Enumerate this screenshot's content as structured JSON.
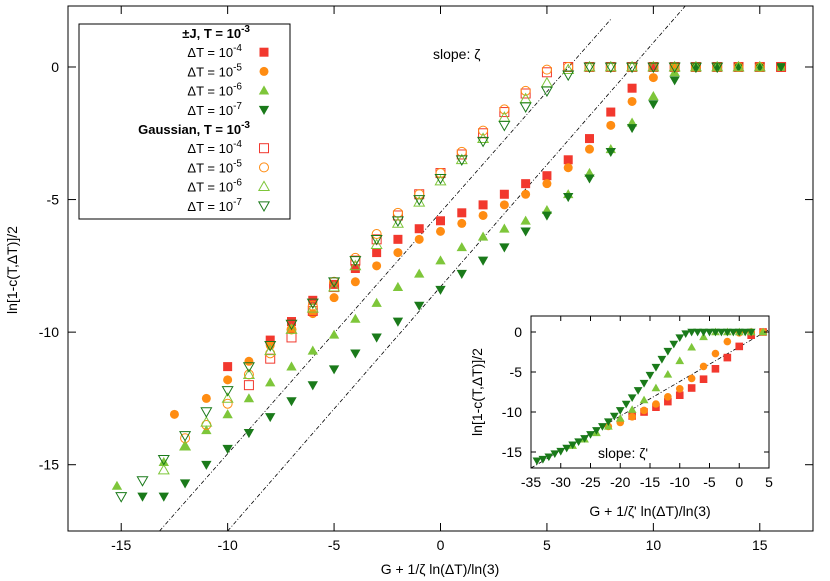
{
  "chart_data": {
    "type": "scatter",
    "title": "",
    "xlabel": "G + 1/ζ ln(ΔT)/ln(3)",
    "ylabel": "ln[1-c(T,ΔT)]/2",
    "xlim": [
      -17.5,
      17.5
    ],
    "ylim": [
      -17.5,
      2.3
    ],
    "xticks": [
      -15,
      -10,
      -5,
      0,
      5,
      10,
      15
    ],
    "yticks": [
      0,
      -5,
      -10,
      -15
    ],
    "annotation": "slope: ζ",
    "reference_lines": [
      {
        "name": "slope-line-left",
        "points": [
          [
            -13.2,
            -17.5
          ],
          [
            8.0,
            1.8
          ]
        ]
      },
      {
        "name": "slope-line-right",
        "points": [
          [
            -10.0,
            -17.5
          ],
          [
            11.5,
            2.3
          ]
        ]
      }
    ],
    "legend": {
      "groups": [
        {
          "title": "±J, T = 10",
          "title_exp": "-3",
          "entries": [
            {
              "label": "ΔT = 10",
              "exp": "-4",
              "series": 0
            },
            {
              "label": "ΔT = 10",
              "exp": "-5",
              "series": 1
            },
            {
              "label": "ΔT = 10",
              "exp": "-6",
              "series": 2
            },
            {
              "label": "ΔT = 10",
              "exp": "-7",
              "series": 3
            }
          ]
        },
        {
          "title": "Gaussian, T = 10",
          "title_exp": "-3",
          "entries": [
            {
              "label": "ΔT = 10",
              "exp": "-4",
              "series": 4
            },
            {
              "label": "ΔT = 10",
              "exp": "-5",
              "series": 5
            },
            {
              "label": "ΔT = 10",
              "exp": "-6",
              "series": 6
            },
            {
              "label": "ΔT = 10",
              "exp": "-7",
              "series": 7
            }
          ]
        }
      ]
    },
    "series": [
      {
        "name": "±J ΔT=10^-4",
        "marker": "square",
        "filled": true,
        "color": "#f2382e",
        "x": [
          -10.0,
          -8.0,
          -7.0,
          -6.0,
          -5.0,
          -4.0,
          -3.0,
          -2.0,
          -1.0,
          0.0,
          1.0,
          2.0,
          3.0,
          4.0,
          5.0,
          6.0,
          7.0,
          8.0,
          9.0,
          10.0,
          11.0,
          12.0,
          13.0,
          14.0,
          15.0,
          16.0
        ],
        "y": [
          -11.3,
          -10.3,
          -9.6,
          -8.8,
          -8.2,
          -7.6,
          -7.0,
          -6.5,
          -6.1,
          -5.8,
          -5.5,
          -5.2,
          -4.8,
          -4.4,
          -4.1,
          -3.5,
          -2.7,
          -1.7,
          -0.8,
          0.0,
          0.0,
          0.0,
          0.0,
          0.0,
          0.0,
          0.0
        ]
      },
      {
        "name": "±J ΔT=10^-5",
        "marker": "circle",
        "filled": true,
        "color": "#ff8c12",
        "x": [
          -12.5,
          -11.0,
          -10.0,
          -9.0,
          -8.0,
          -7.0,
          -6.0,
          -5.0,
          -4.0,
          -3.0,
          -2.0,
          -1.0,
          0.0,
          1.0,
          2.0,
          3.0,
          4.0,
          5.0,
          6.0,
          7.0,
          8.0,
          9.0,
          10.0,
          11.0,
          12.0,
          13.0,
          14.0,
          15.0,
          16.0
        ],
        "y": [
          -13.1,
          -12.5,
          -11.8,
          -11.1,
          -10.5,
          -9.9,
          -9.3,
          -8.7,
          -8.1,
          -7.5,
          -7.0,
          -6.5,
          -6.2,
          -5.9,
          -5.6,
          -5.2,
          -4.8,
          -4.4,
          -3.8,
          -3.1,
          -2.2,
          -1.3,
          -0.4,
          0.0,
          0.0,
          0.0,
          0.0,
          0.0,
          0.0
        ]
      },
      {
        "name": "±J ΔT=10^-6",
        "marker": "triangle",
        "filled": true,
        "color": "#7ec63a",
        "x": [
          -15.2,
          -13.0,
          -12.0,
          -11.0,
          -10.0,
          -9.0,
          -8.0,
          -7.0,
          -6.0,
          -5.0,
          -4.0,
          -3.0,
          -2.0,
          -1.0,
          0.0,
          1.0,
          2.0,
          3.0,
          4.0,
          5.0,
          6.0,
          7.0,
          8.0,
          9.0,
          10.0,
          11.0,
          12.0,
          13.0,
          14.0,
          15.0,
          16.0
        ],
        "y": [
          -15.8,
          -14.9,
          -14.3,
          -13.7,
          -13.1,
          -12.5,
          -11.9,
          -11.3,
          -10.7,
          -10.1,
          -9.5,
          -8.9,
          -8.3,
          -7.8,
          -7.3,
          -6.8,
          -6.4,
          -6.1,
          -5.8,
          -5.4,
          -4.8,
          -4.0,
          -3.1,
          -2.1,
          -1.1,
          -0.2,
          0.0,
          0.0,
          0.0,
          0.0,
          0.0
        ]
      },
      {
        "name": "±J ΔT=10^-7",
        "marker": "triangle-down",
        "filled": true,
        "color": "#1a7a1a",
        "x": [
          -14.0,
          -13.0,
          -12.0,
          -11.0,
          -10.0,
          -9.0,
          -8.0,
          -7.0,
          -6.0,
          -5.0,
          -4.0,
          -3.0,
          -2.0,
          -1.0,
          0.0,
          1.0,
          2.0,
          3.0,
          4.0,
          5.0,
          6.0,
          7.0,
          8.0,
          9.0,
          10.0,
          11.0,
          12.0,
          13.0,
          14.0,
          15.0,
          16.0
        ],
        "y": [
          -16.2,
          -16.2,
          -15.7,
          -15.0,
          -14.4,
          -13.8,
          -13.2,
          -12.6,
          -12.0,
          -11.4,
          -10.8,
          -10.2,
          -9.6,
          -9.0,
          -8.4,
          -7.8,
          -7.3,
          -6.8,
          -6.2,
          -5.6,
          -4.9,
          -4.2,
          -3.2,
          -2.3,
          -1.4,
          -0.5,
          0.0,
          0.0,
          0.0,
          0.0,
          0.0
        ]
      },
      {
        "name": "Gaussian ΔT=10^-4",
        "marker": "square",
        "filled": false,
        "color": "#f2382e",
        "x": [
          -9.0,
          -8.0,
          -7.0,
          -6.0,
          -5.0,
          -4.0,
          -3.0,
          -2.0,
          -1.0,
          0.0,
          1.0,
          2.0,
          3.0,
          4.0,
          5.0,
          6.0,
          7.0,
          8.0,
          9.0,
          10.0,
          11.0,
          12.0,
          13.0,
          14.0,
          15.0,
          16.0
        ],
        "y": [
          -12.0,
          -11.0,
          -10.2,
          -9.2,
          -8.3,
          -7.3,
          -6.5,
          -5.6,
          -4.8,
          -4.0,
          -3.3,
          -2.5,
          -1.7,
          -1.0,
          -0.2,
          0.0,
          0.0,
          0.0,
          0.0,
          0.0,
          0.0,
          0.0,
          0.0,
          0.0,
          0.0,
          0.0
        ]
      },
      {
        "name": "Gaussian ΔT=10^-5",
        "marker": "circle",
        "filled": false,
        "color": "#ff8c12",
        "x": [
          -12.0,
          -11.0,
          -10.0,
          -9.0,
          -8.0,
          -7.0,
          -6.0,
          -5.0,
          -4.0,
          -3.0,
          -2.0,
          -1.0,
          0.0,
          1.0,
          2.0,
          3.0,
          4.0,
          5.0,
          6.0,
          7.0,
          8.0,
          9.0,
          10.0,
          11.0,
          12.0,
          13.0,
          14.0,
          15.0
        ],
        "y": [
          -14.0,
          -13.5,
          -12.7,
          -11.6,
          -10.8,
          -9.9,
          -9.0,
          -8.1,
          -7.2,
          -6.3,
          -5.5,
          -4.8,
          -4.0,
          -3.2,
          -2.4,
          -1.6,
          -0.9,
          -0.1,
          0.0,
          0.0,
          0.0,
          0.0,
          0.0,
          0.0,
          0.0,
          0.0,
          0.0,
          0.0
        ]
      },
      {
        "name": "Gaussian ΔT=10^-6",
        "marker": "triangle",
        "filled": false,
        "color": "#7ec63a",
        "x": [
          -13.0,
          -12.0,
          -11.0,
          -10.0,
          -9.0,
          -8.0,
          -7.0,
          -6.0,
          -5.0,
          -4.0,
          -3.0,
          -2.0,
          -1.0,
          0.0,
          1.0,
          2.0,
          3.0,
          4.0,
          5.0,
          6.0,
          7.0,
          8.0,
          9.0,
          10.0,
          11.0,
          12.0,
          13.0,
          14.0,
          15.0
        ],
        "y": [
          -15.2,
          -14.3,
          -13.4,
          -12.5,
          -11.6,
          -10.7,
          -9.9,
          -9.1,
          -8.3,
          -7.5,
          -6.7,
          -5.9,
          -5.1,
          -4.3,
          -3.5,
          -2.7,
          -1.9,
          -1.2,
          -0.6,
          -0.1,
          0.0,
          0.0,
          0.0,
          0.0,
          0.0,
          0.0,
          0.0,
          0.0,
          0.0
        ]
      },
      {
        "name": "Gaussian ΔT=10^-7",
        "marker": "triangle-down",
        "filled": false,
        "color": "#1a7a1a",
        "x": [
          -15.0,
          -14.0,
          -13.0,
          -12.0,
          -11.0,
          -10.0,
          -9.0,
          -8.0,
          -7.0,
          -6.0,
          -5.0,
          -4.0,
          -3.0,
          -2.0,
          -1.0,
          0.0,
          1.0,
          2.0,
          3.0,
          4.0,
          5.0,
          6.0,
          7.0,
          8.0,
          9.0,
          10.0,
          11.0,
          12.0,
          13.0
        ],
        "y": [
          -16.2,
          -15.6,
          -14.8,
          -13.9,
          -13.0,
          -12.2,
          -11.3,
          -10.5,
          -9.7,
          -8.9,
          -8.1,
          -7.3,
          -6.5,
          -5.8,
          -5.0,
          -4.2,
          -3.5,
          -2.8,
          -2.2,
          -1.5,
          -0.9,
          -0.3,
          0.0,
          0.0,
          0.0,
          0.0,
          0.0,
          0.0,
          0.0
        ]
      }
    ],
    "inset": {
      "xlabel": "G + 1/ζ' ln(ΔT)/ln(3)",
      "ylabel": "ln[1-c(T,ΔT)]/2",
      "xlim": [
        -35,
        5
      ],
      "ylim": [
        -17,
        2
      ],
      "xticks": [
        -35,
        -30,
        -25,
        -20,
        -15,
        -10,
        -5,
        0,
        5
      ],
      "yticks": [
        0,
        -5,
        -10,
        -15
      ],
      "annotation": "slope: ζ'",
      "reference_line": {
        "points": [
          [
            -35,
            -17
          ],
          [
            5,
            0.3
          ]
        ]
      },
      "series": [
        {
          "name": "±J ΔT=10^-4",
          "marker": "square",
          "color": "#f2382e",
          "x": [
            -18,
            -16,
            -14,
            -12,
            -10,
            -8,
            -6,
            -4,
            -2,
            0,
            2,
            4
          ],
          "y": [
            -10.5,
            -10.0,
            -9.4,
            -8.7,
            -7.9,
            -7.0,
            -5.9,
            -4.6,
            -3.2,
            -1.8,
            -0.4,
            0.0
          ]
        },
        {
          "name": "±J ΔT=10^-5",
          "marker": "circle",
          "color": "#ff8c12",
          "x": [
            -22,
            -20,
            -18,
            -16,
            -14,
            -12,
            -10,
            -8,
            -6,
            -4,
            -2,
            0,
            2,
            4
          ],
          "y": [
            -11.8,
            -11.3,
            -10.6,
            -9.8,
            -9.0,
            -8.1,
            -7.1,
            -5.8,
            -4.3,
            -2.7,
            -1.2,
            -0.1,
            0.0,
            0.0
          ]
        },
        {
          "name": "±J ΔT=10^-6",
          "marker": "triangle",
          "color": "#7ec63a",
          "x": [
            -28,
            -26,
            -24,
            -22,
            -20,
            -18,
            -16,
            -14,
            -12,
            -10,
            -8,
            -6,
            -4,
            -2,
            0,
            2,
            4
          ],
          "y": [
            -14.2,
            -13.4,
            -12.6,
            -11.8,
            -10.8,
            -9.7,
            -8.5,
            -7.0,
            -5.3,
            -3.6,
            -1.9,
            -0.6,
            0.0,
            0.0,
            0.0,
            0.0,
            0.0
          ]
        },
        {
          "name": "±J ΔT=10^-7",
          "marker": "triangle-down",
          "color": "#1a7a1a",
          "x": [
            -34,
            -33,
            -32,
            -31,
            -30,
            -29,
            -28,
            -27,
            -26,
            -25,
            -24,
            -23,
            -22,
            -21,
            -20,
            -19,
            -18,
            -17,
            -16,
            -15,
            -14,
            -13,
            -12,
            -11,
            -10,
            -9,
            -8,
            -7,
            -6,
            -5,
            -4,
            -3,
            -2,
            -1,
            0,
            1,
            2
          ],
          "y": [
            -16.1,
            -15.9,
            -15.6,
            -15.2,
            -14.9,
            -14.5,
            -14.1,
            -13.7,
            -13.3,
            -12.8,
            -12.3,
            -11.8,
            -11.2,
            -10.5,
            -9.8,
            -9.0,
            -8.2,
            -7.3,
            -6.4,
            -5.4,
            -4.4,
            -3.4,
            -2.4,
            -1.5,
            -0.7,
            -0.2,
            0.0,
            0.0,
            0.0,
            0.0,
            0.0,
            0.0,
            0.0,
            0.0,
            0.0,
            0.0,
            0.0
          ]
        }
      ]
    }
  }
}
